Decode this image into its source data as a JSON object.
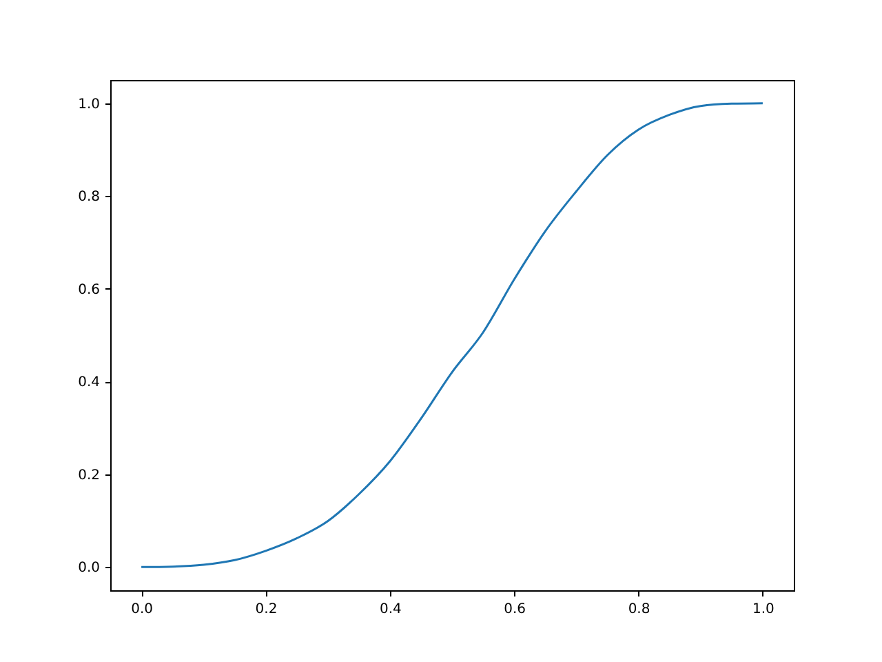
{
  "chart_data": {
    "type": "line",
    "x": [
      0,
      0.05,
      0.1,
      0.15,
      0.2,
      0.25,
      0.3,
      0.35,
      0.4,
      0.45,
      0.5,
      0.55,
      0.6,
      0.65,
      0.7,
      0.75,
      0.8,
      0.85,
      0.9,
      0.95,
      1.0
    ],
    "series": [
      {
        "color": "#1f77b4",
        "values": [
          0,
          0.001,
          0.005,
          0.015,
          0.035,
          0.062,
          0.099,
          0.157,
          0.228,
          0.32,
          0.42,
          0.506,
          0.62,
          0.724,
          0.81,
          0.888,
          0.943,
          0.975,
          0.994,
          0.999,
          1.0
        ]
      }
    ],
    "xlim": [
      -0.05,
      1.05
    ],
    "ylim": [
      -0.05,
      1.05
    ],
    "xticks": [
      {
        "value": 0,
        "label": "0.0"
      },
      {
        "value": 0.2,
        "label": "0.2"
      },
      {
        "value": 0.4,
        "label": "0.4"
      },
      {
        "value": 0.6,
        "label": "0.6"
      },
      {
        "value": 0.8,
        "label": "0.8"
      },
      {
        "value": 1.0,
        "label": "1.0"
      }
    ],
    "yticks": [
      {
        "value": 0,
        "label": "0.0"
      },
      {
        "value": 0.2,
        "label": "0.2"
      },
      {
        "value": 0.4,
        "label": "0.4"
      },
      {
        "value": 0.6,
        "label": "0.6"
      },
      {
        "value": 0.8,
        "label": "0.8"
      },
      {
        "value": 1.0,
        "label": "1.0"
      }
    ],
    "grid": false,
    "marker": "none",
    "line_style": "solid"
  }
}
